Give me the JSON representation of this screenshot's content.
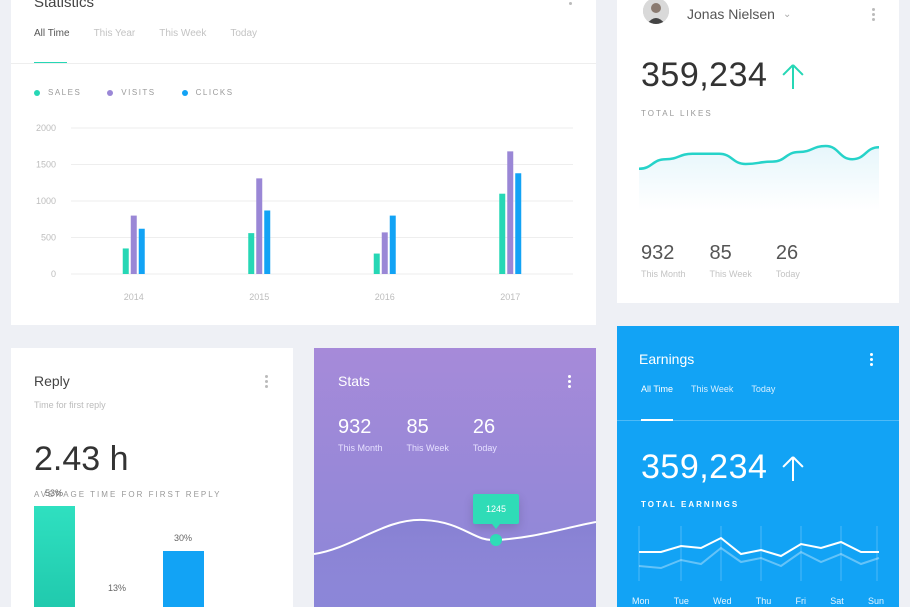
{
  "statistics": {
    "title": "Statistics",
    "tabs": [
      "All Time",
      "This Year",
      "This Week",
      "Today"
    ],
    "active_tab": 0,
    "legend": [
      {
        "name": "SALES",
        "color": "#26d7b5"
      },
      {
        "name": "VISITS",
        "color": "#9a87d6"
      },
      {
        "name": "CLICKS",
        "color": "#12a3f5"
      }
    ],
    "chart_data": {
      "type": "bar",
      "categories": [
        "2014",
        "2015",
        "2016",
        "2017"
      ],
      "series": [
        {
          "name": "SALES",
          "values": [
            350,
            560,
            280,
            1100
          ]
        },
        {
          "name": "VISITS",
          "values": [
            800,
            1310,
            570,
            1680
          ]
        },
        {
          "name": "CLICKS",
          "values": [
            620,
            870,
            800,
            1380
          ]
        }
      ],
      "y_ticks": [
        "2000",
        "1500",
        "1000",
        "500",
        "0"
      ],
      "ylim": [
        0,
        2000
      ],
      "grid": true
    }
  },
  "profile": {
    "user_name": "Jonas Nielsen",
    "total": "359,234",
    "total_label": "TOTAL LIKES",
    "line_color": "#26d3c9",
    "trend": [
      0.58,
      0.42,
      0.33,
      0.33,
      0.5,
      0.46,
      0.3,
      0.2,
      0.42,
      0.22
    ],
    "stats": [
      {
        "value": "932",
        "label": "This Month"
      },
      {
        "value": "85",
        "label": "This Week"
      },
      {
        "value": "26",
        "label": "Today"
      }
    ]
  },
  "reply": {
    "title": "Reply",
    "subtitle": "Time for first reply",
    "value": "2.43 h",
    "value_label": "AVERAGE TIME FOR FIRST REPLY",
    "chart_data": {
      "type": "bar",
      "values": [
        53,
        13,
        30
      ],
      "labels": [
        "53%",
        "13%",
        "30%"
      ],
      "colors": [
        "#26d7b5",
        "#12a3f5",
        "#12a3f5"
      ]
    }
  },
  "stats_purple": {
    "title": "Stats",
    "stats": [
      {
        "value": "932",
        "label": "This Month"
      },
      {
        "value": "85",
        "label": "This Week"
      },
      {
        "value": "26",
        "label": "Today"
      }
    ],
    "tooltip_value": "1245",
    "marker_color": "#2fdcb7"
  },
  "earnings": {
    "title": "Earnings",
    "tabs": [
      "All Time",
      "This Week",
      "Today"
    ],
    "active_tab": 0,
    "total": "359,234",
    "total_label": "TOTAL EARNINGS",
    "days": [
      "Mon",
      "Tue",
      "Wed",
      "Thu",
      "Fri",
      "Sat",
      "Sun"
    ]
  }
}
